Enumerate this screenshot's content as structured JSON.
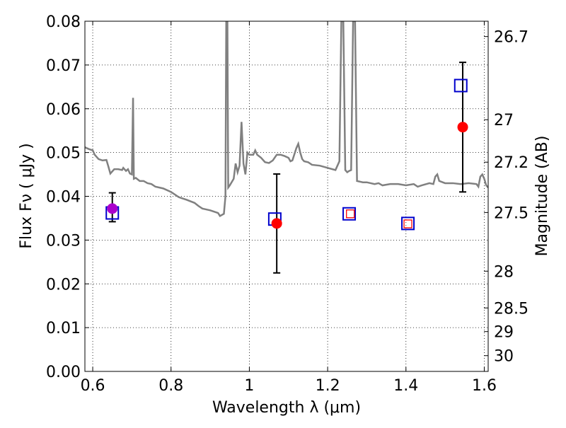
{
  "chart_data": {
    "type": "scatter",
    "xlabel": "Wavelength  λ (μm)",
    "ylabel": "Flux  Fν  ( μJy )",
    "right_ylabel": "Magnitude (AB)",
    "xlim": [
      0.58,
      1.61
    ],
    "ylim": [
      0.0,
      0.08
    ],
    "grid": true,
    "x_ticks": [
      0.6,
      0.8,
      1.0,
      1.2,
      1.4,
      1.6
    ],
    "x_tick_labels": [
      "0.6",
      "0.8",
      "1",
      "1.2",
      "1.4",
      "1.6"
    ],
    "y_ticks": [
      0.0,
      0.01,
      0.02,
      0.03,
      0.04,
      0.05,
      0.06,
      0.07,
      0.08
    ],
    "y_tick_labels": [
      "0.00",
      "0.01",
      "0.02",
      "0.03",
      "0.04",
      "0.05",
      "0.06",
      "0.07",
      "0.08"
    ],
    "right_ticks": [
      {
        "label": "26.7",
        "flux": 0.0765
      },
      {
        "label": "27",
        "flux": 0.0575
      },
      {
        "label": "27.2",
        "flux": 0.0478
      },
      {
        "label": "27.5",
        "flux": 0.0363
      },
      {
        "label": "28",
        "flux": 0.0229
      },
      {
        "label": "28.5",
        "flux": 0.0145
      },
      {
        "label": "29",
        "flux": 0.0091
      },
      {
        "label": "30",
        "flux": 0.0036
      }
    ],
    "series": [
      {
        "kind": "line",
        "color": "#808080",
        "points": [
          [
            0.58,
            0.0512
          ],
          [
            0.59,
            0.0508
          ],
          [
            0.6,
            0.0505
          ],
          [
            0.605,
            0.0495
          ],
          [
            0.615,
            0.0485
          ],
          [
            0.625,
            0.0482
          ],
          [
            0.635,
            0.0483
          ],
          [
            0.64,
            0.0468
          ],
          [
            0.645,
            0.0452
          ],
          [
            0.655,
            0.0462
          ],
          [
            0.665,
            0.0462
          ],
          [
            0.675,
            0.046
          ],
          [
            0.678,
            0.0465
          ],
          [
            0.685,
            0.0458
          ],
          [
            0.69,
            0.0462
          ],
          [
            0.695,
            0.0452
          ],
          [
            0.7,
            0.045
          ],
          [
            0.703,
            0.0625
          ],
          [
            0.705,
            0.044
          ],
          [
            0.71,
            0.0442
          ],
          [
            0.72,
            0.0435
          ],
          [
            0.73,
            0.0435
          ],
          [
            0.74,
            0.043
          ],
          [
            0.75,
            0.0428
          ],
          [
            0.76,
            0.0422
          ],
          [
            0.78,
            0.0418
          ],
          [
            0.8,
            0.041
          ],
          [
            0.82,
            0.0398
          ],
          [
            0.84,
            0.0392
          ],
          [
            0.86,
            0.0385
          ],
          [
            0.87,
            0.0378
          ],
          [
            0.88,
            0.0372
          ],
          [
            0.89,
            0.037
          ],
          [
            0.9,
            0.0368
          ],
          [
            0.91,
            0.0365
          ],
          [
            0.92,
            0.0362
          ],
          [
            0.925,
            0.0355
          ],
          [
            0.935,
            0.036
          ],
          [
            0.939,
            0.04
          ],
          [
            0.941,
            0.08
          ],
          [
            0.944,
            0.08
          ],
          [
            0.946,
            0.042
          ],
          [
            0.95,
            0.0425
          ],
          [
            0.96,
            0.044
          ],
          [
            0.965,
            0.0475
          ],
          [
            0.97,
            0.0455
          ],
          [
            0.975,
            0.047
          ],
          [
            0.98,
            0.057
          ],
          [
            0.985,
            0.0475
          ],
          [
            0.99,
            0.045
          ],
          [
            0.995,
            0.05
          ],
          [
            1.0,
            0.0495
          ],
          [
            1.01,
            0.0495
          ],
          [
            1.015,
            0.0505
          ],
          [
            1.02,
            0.0495
          ],
          [
            1.03,
            0.0488
          ],
          [
            1.04,
            0.0478
          ],
          [
            1.05,
            0.0476
          ],
          [
            1.06,
            0.0482
          ],
          [
            1.07,
            0.0495
          ],
          [
            1.08,
            0.0495
          ],
          [
            1.09,
            0.0492
          ],
          [
            1.1,
            0.0488
          ],
          [
            1.105,
            0.048
          ],
          [
            1.11,
            0.0482
          ],
          [
            1.12,
            0.051
          ],
          [
            1.125,
            0.052
          ],
          [
            1.13,
            0.05
          ],
          [
            1.135,
            0.0485
          ],
          [
            1.14,
            0.048
          ],
          [
            1.15,
            0.0478
          ],
          [
            1.16,
            0.0472
          ],
          [
            1.18,
            0.047
          ],
          [
            1.2,
            0.0465
          ],
          [
            1.22,
            0.046
          ],
          [
            1.225,
            0.047
          ],
          [
            1.23,
            0.048
          ],
          [
            1.235,
            0.08
          ],
          [
            1.24,
            0.08
          ],
          [
            1.245,
            0.046
          ],
          [
            1.25,
            0.0455
          ],
          [
            1.255,
            0.0458
          ],
          [
            1.26,
            0.046
          ],
          [
            1.265,
            0.08
          ],
          [
            1.27,
            0.08
          ],
          [
            1.275,
            0.0435
          ],
          [
            1.29,
            0.0432
          ],
          [
            1.3,
            0.0432
          ],
          [
            1.32,
            0.0428
          ],
          [
            1.33,
            0.043
          ],
          [
            1.34,
            0.0425
          ],
          [
            1.36,
            0.0428
          ],
          [
            1.38,
            0.0428
          ],
          [
            1.4,
            0.0425
          ],
          [
            1.42,
            0.0428
          ],
          [
            1.43,
            0.0422
          ],
          [
            1.44,
            0.0425
          ],
          [
            1.46,
            0.043
          ],
          [
            1.47,
            0.0428
          ],
          [
            1.475,
            0.0445
          ],
          [
            1.48,
            0.045
          ],
          [
            1.485,
            0.0435
          ],
          [
            1.5,
            0.043
          ],
          [
            1.52,
            0.043
          ],
          [
            1.54,
            0.0428
          ],
          [
            1.56,
            0.043
          ],
          [
            1.58,
            0.0428
          ],
          [
            1.585,
            0.0422
          ],
          [
            1.59,
            0.0445
          ],
          [
            1.595,
            0.045
          ],
          [
            1.6,
            0.044
          ],
          [
            1.605,
            0.0425
          ],
          [
            1.61,
            0.042
          ]
        ]
      },
      {
        "kind": "errorbar",
        "color": "#000000",
        "points": [
          {
            "x": 0.65,
            "y": 0.0375,
            "yerr": 0.0033
          },
          {
            "x": 1.07,
            "y": 0.0338,
            "yerr": 0.0113
          },
          {
            "x": 1.545,
            "y": 0.0558,
            "yerr": 0.0148
          }
        ]
      },
      {
        "kind": "open-square",
        "color": "#0000cc",
        "points": [
          [
            0.65,
            0.0362
          ],
          [
            1.065,
            0.0348
          ],
          [
            1.255,
            0.036
          ],
          [
            1.405,
            0.0338
          ],
          [
            1.54,
            0.0653
          ]
        ]
      },
      {
        "kind": "open-square",
        "color": "#ff0000",
        "points": [
          [
            1.258,
            0.036
          ],
          [
            1.405,
            0.0337
          ]
        ]
      },
      {
        "kind": "filled-circle",
        "color": "#ff0000",
        "points": [
          [
            1.07,
            0.0338
          ],
          [
            1.545,
            0.0558
          ]
        ]
      },
      {
        "kind": "filled-circle",
        "color": "#aa00cc",
        "points": [
          [
            0.65,
            0.0372
          ]
        ]
      }
    ]
  }
}
